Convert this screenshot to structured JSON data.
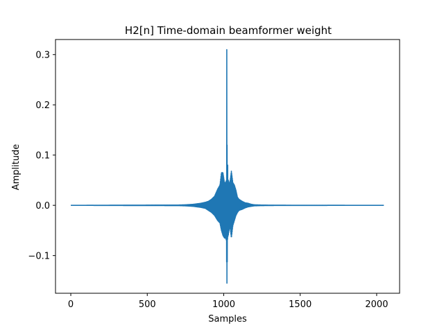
{
  "chart_data": {
    "type": "line",
    "title": "H2[n] Time-domain beamformer weight",
    "xlabel": "Samples",
    "ylabel": "Amplitude",
    "xlim": [
      -100,
      2150
    ],
    "ylim": [
      -0.175,
      0.33
    ],
    "xticks": [
      0,
      500,
      1000,
      1500,
      2000
    ],
    "xtick_labels": [
      "0",
      "500",
      "1000",
      "1500",
      "2000"
    ],
    "yticks": [
      -0.1,
      0.0,
      0.1,
      0.2,
      0.3
    ],
    "ytick_labels": [
      "−0.1",
      "0.0",
      "0.1",
      "0.2",
      "0.3"
    ],
    "grid": false,
    "line_color": "#1f77b4",
    "series": [
      {
        "n_samples": 2048,
        "x": [
          0,
          700,
          750,
          800,
          850,
          880,
          900,
          920,
          940,
          960,
          975,
          985,
          995,
          1005,
          1012,
          1018,
          1020,
          1022,
          1024,
          1026,
          1028,
          1030,
          1035,
          1040,
          1050,
          1060,
          1070,
          1080,
          1090,
          1100,
          1120,
          1140,
          1160,
          1180,
          1200,
          1250,
          1300,
          1350,
          2047
        ],
        "y_max": [
          0,
          0.0005,
          0.001,
          0.002,
          0.004,
          0.006,
          0.008,
          0.012,
          0.018,
          0.032,
          0.04,
          0.065,
          0.065,
          0.045,
          0.045,
          0.05,
          0.31,
          0.12,
          0.06,
          0.08,
          0.05,
          0.05,
          0.045,
          0.045,
          0.068,
          0.045,
          0.04,
          0.03,
          0.016,
          0.012,
          0.008,
          0.005,
          0.004,
          0.002,
          0.001,
          0.0005,
          0.0003,
          0.0002,
          0
        ],
        "y_min": [
          0,
          -0.0005,
          -0.001,
          -0.002,
          -0.004,
          -0.006,
          -0.01,
          -0.014,
          -0.02,
          -0.03,
          -0.035,
          -0.05,
          -0.06,
          -0.065,
          -0.065,
          -0.07,
          -0.155,
          -0.155,
          -0.07,
          -0.065,
          -0.06,
          -0.06,
          -0.05,
          -0.04,
          -0.065,
          -0.04,
          -0.03,
          -0.02,
          -0.014,
          -0.01,
          -0.008,
          -0.005,
          -0.003,
          -0.002,
          -0.001,
          -0.0005,
          -0.0003,
          -0.0002,
          0
        ]
      }
    ]
  }
}
